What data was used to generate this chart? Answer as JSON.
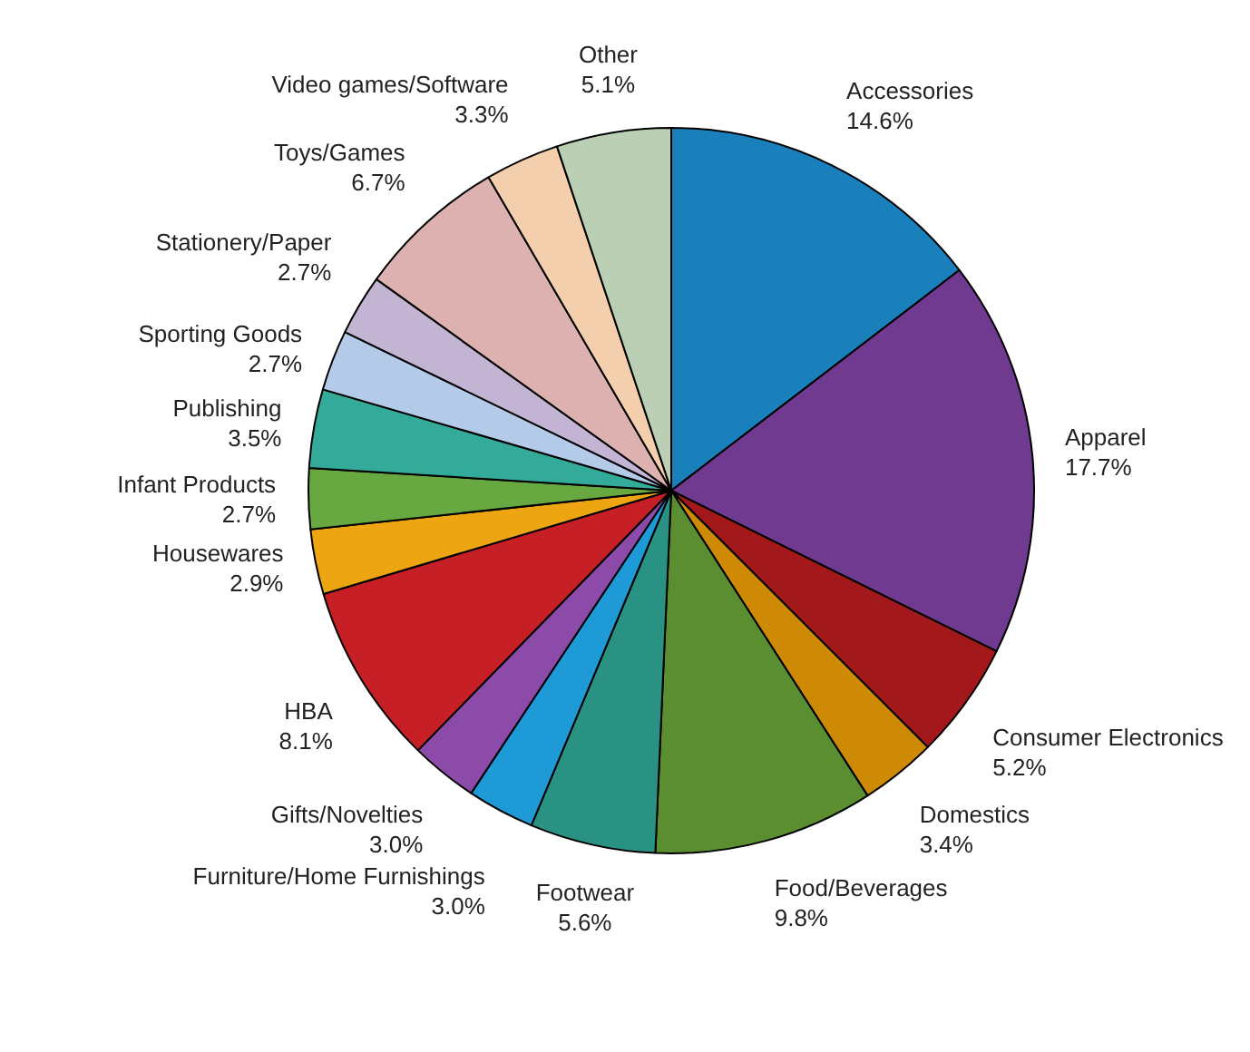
{
  "chart_data": {
    "type": "pie",
    "categories": [
      "Accessories",
      "Apparel",
      "Consumer Electronics",
      "Domestics",
      "Food/Beverages",
      "Footwear",
      "Furniture/Home Furnishings",
      "Gifts/Novelties",
      "HBA",
      "Housewares",
      "Infant Products",
      "Publishing",
      "Sporting Goods",
      "Stationery/Paper",
      "Toys/Games",
      "Video games/Software",
      "Other"
    ],
    "values": [
      14.6,
      17.7,
      5.2,
      3.4,
      9.8,
      5.6,
      3.0,
      3.0,
      8.1,
      2.9,
      2.7,
      3.5,
      2.7,
      2.7,
      6.7,
      3.3,
      5.1
    ],
    "value_labels": [
      "14.6%",
      "17.7%",
      "5.2%",
      "3.4%",
      "9.8%",
      "5.6%",
      "3.0%",
      "3.0%",
      "8.1%",
      "2.9%",
      "2.7%",
      "3.5%",
      "2.7%",
      "2.7%",
      "6.7%",
      "3.3%",
      "5.1%"
    ],
    "colors": [
      "#1a80bb",
      "#6f3a8f",
      "#a3191b",
      "#cf8a05",
      "#5a8e31",
      "#2a9282",
      "#1e9bd7",
      "#8c4aa9",
      "#c62026",
      "#eea512",
      "#67a840",
      "#34aa9a",
      "#b3cbe8",
      "#c4b4d3",
      "#deb1b1",
      "#f4cfae",
      "#bacfb3"
    ]
  }
}
